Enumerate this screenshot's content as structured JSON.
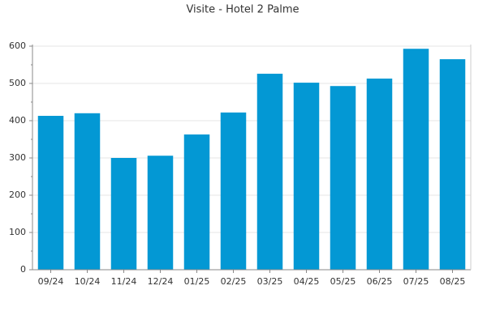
{
  "chart_data": {
    "type": "bar",
    "title": "Visite - Hotel 2 Palme",
    "categories": [
      "09/24",
      "10/24",
      "11/24",
      "12/24",
      "01/25",
      "02/25",
      "03/25",
      "04/25",
      "05/25",
      "06/25",
      "07/25",
      "08/25"
    ],
    "values": [
      413,
      420,
      300,
      306,
      363,
      422,
      526,
      502,
      493,
      513,
      593,
      565
    ],
    "color": "#0398d4",
    "ylim": [
      0,
      600
    ],
    "yticks": [
      0,
      100,
      200,
      300,
      400,
      500,
      600
    ],
    "grid": true
  }
}
